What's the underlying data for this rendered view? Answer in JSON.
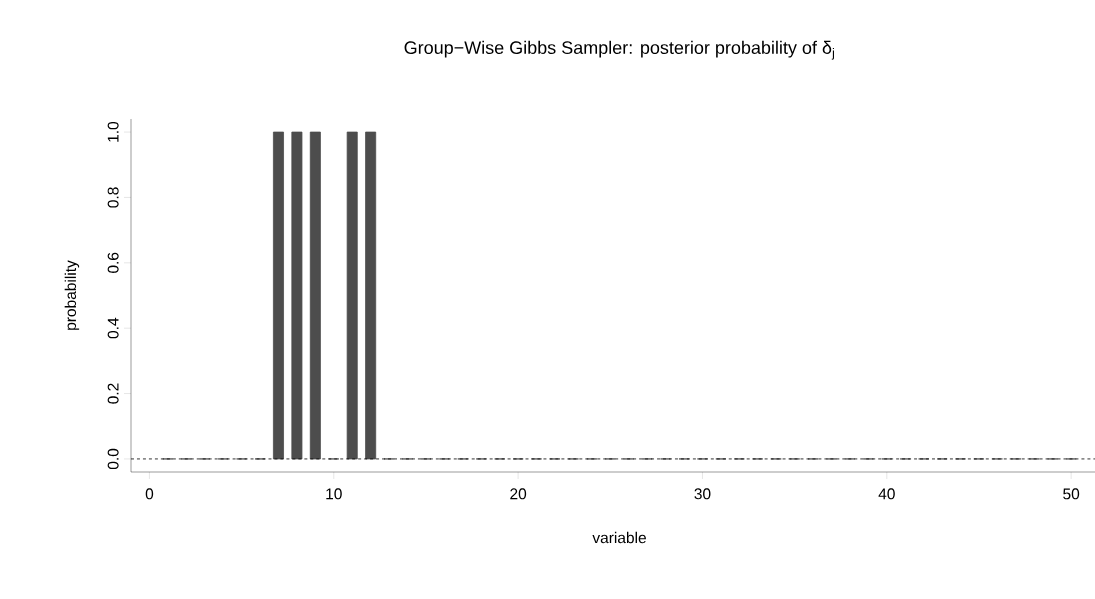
{
  "chart_data": {
    "type": "bar",
    "title": "Group−Wise Gibbs Sampler: posterior probability of  δ$_{j}$",
    "xlabel": "variable",
    "ylabel": "probability",
    "x": [
      1,
      2,
      3,
      4,
      5,
      6,
      7,
      8,
      9,
      10,
      11,
      12,
      13,
      14,
      15,
      16,
      17,
      18,
      19,
      20,
      21,
      22,
      23,
      24,
      25,
      26,
      27,
      28,
      29,
      30,
      31,
      32,
      33,
      34,
      35,
      36,
      37,
      38,
      39,
      40,
      41,
      42,
      43,
      44,
      45,
      46,
      47,
      48,
      49,
      50
    ],
    "values": [
      0,
      0,
      0,
      0,
      0,
      0,
      1,
      1,
      1,
      0,
      1,
      1,
      0,
      0,
      0,
      0,
      0,
      0,
      0,
      0,
      0,
      0,
      0,
      0,
      0,
      0,
      0,
      0,
      0,
      0,
      0,
      0,
      0,
      0,
      0,
      0,
      0,
      0,
      0,
      0,
      0,
      0,
      0,
      0,
      0,
      0,
      0,
      0,
      0,
      0
    ],
    "color": "#4d4d4d",
    "xlim": [
      -1,
      52
    ],
    "xticks": [
      0,
      10,
      20,
      30,
      40,
      50
    ],
    "ylim": [
      -0.04,
      1.04
    ],
    "yticks": [
      {
        "value": 0,
        "label": "0.0"
      },
      0.2,
      0.4,
      0.6,
      0.8,
      {
        "value": 1,
        "label": "1.0"
      }
    ],
    "ref_lines": [
      {
        "axis": "y",
        "value": 0,
        "line_style": "dashed"
      }
    ]
  }
}
